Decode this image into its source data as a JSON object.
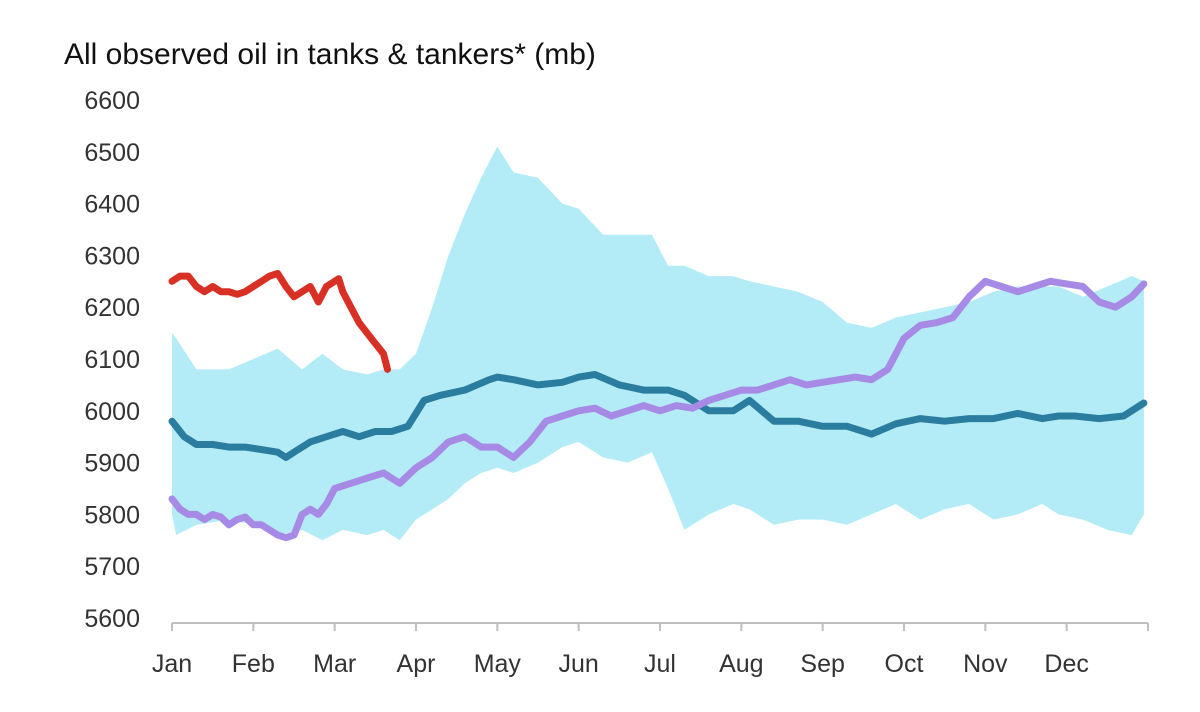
{
  "chart_data": {
    "type": "line",
    "title": "All observed oil in tanks & tankers* (mb)",
    "xlabel": "",
    "ylabel": "",
    "x_ticks": [
      "Jan",
      "Feb",
      "Mar",
      "Apr",
      "May",
      "Jun",
      "Jul",
      "Aug",
      "Sep",
      "Oct",
      "Nov",
      "Dec"
    ],
    "xlim": [
      0,
      12
    ],
    "ylim": [
      5600,
      6600
    ],
    "y_ticks": [
      5600,
      5700,
      5800,
      5900,
      6000,
      6100,
      6200,
      6300,
      6400,
      6500,
      6600
    ],
    "grid": false,
    "legend": "none",
    "band": {
      "color": "#b3ecf6",
      "x": [
        0,
        0.05,
        0.3,
        0.7,
        1.0,
        1.3,
        1.6,
        1.85,
        2.1,
        2.4,
        2.6,
        2.8,
        3.0,
        3.2,
        3.4,
        3.6,
        3.8,
        4.0,
        4.2,
        4.5,
        4.8,
        5.0,
        5.3,
        5.6,
        5.9,
        6.1,
        6.3,
        6.6,
        6.9,
        7.1,
        7.4,
        7.7,
        8.0,
        8.3,
        8.6,
        8.9,
        9.2,
        9.5,
        9.8,
        10.1,
        10.4,
        10.7,
        10.9,
        11.2,
        11.5,
        11.8,
        11.95
      ],
      "upper": [
        6150,
        6140,
        6080,
        6080,
        6100,
        6120,
        6080,
        6110,
        6080,
        6070,
        6080,
        6080,
        6110,
        6200,
        6300,
        6380,
        6450,
        6510,
        6460,
        6450,
        6400,
        6390,
        6340,
        6340,
        6340,
        6280,
        6280,
        6260,
        6260,
        6250,
        6240,
        6230,
        6210,
        6170,
        6160,
        6180,
        6190,
        6200,
        6210,
        6230,
        6240,
        6240,
        6240,
        6220,
        6240,
        6260,
        6250
      ],
      "lower": [
        5800,
        5760,
        5780,
        5790,
        5780,
        5760,
        5770,
        5750,
        5770,
        5760,
        5770,
        5750,
        5790,
        5810,
        5830,
        5860,
        5880,
        5890,
        5880,
        5900,
        5930,
        5940,
        5910,
        5900,
        5920,
        5850,
        5770,
        5800,
        5820,
        5810,
        5780,
        5790,
        5790,
        5780,
        5800,
        5820,
        5790,
        5810,
        5820,
        5790,
        5800,
        5820,
        5800,
        5790,
        5770,
        5760,
        5800
      ]
    },
    "series": [
      {
        "color": "#d93025",
        "x": [
          0,
          0.1,
          0.2,
          0.3,
          0.4,
          0.5,
          0.6,
          0.7,
          0.8,
          0.9,
          1.0,
          1.1,
          1.2,
          1.3,
          1.4,
          1.5,
          1.6,
          1.7,
          1.8,
          1.9,
          2.0,
          2.05,
          2.1,
          2.2,
          2.3,
          2.4,
          2.5,
          2.6,
          2.65
        ],
        "values": [
          6250,
          6260,
          6260,
          6240,
          6230,
          6240,
          6230,
          6230,
          6225,
          6230,
          6240,
          6250,
          6260,
          6265,
          6240,
          6220,
          6230,
          6240,
          6210,
          6240,
          6250,
          6255,
          6230,
          6200,
          6170,
          6150,
          6130,
          6110,
          6080
        ]
      },
      {
        "color": "#2a7d9f",
        "x": [
          0,
          0.15,
          0.3,
          0.5,
          0.7,
          0.9,
          1.1,
          1.3,
          1.4,
          1.5,
          1.7,
          1.9,
          2.1,
          2.3,
          2.5,
          2.7,
          2.9,
          3.1,
          3.3,
          3.6,
          3.9,
          4.0,
          4.2,
          4.5,
          4.8,
          5.0,
          5.2,
          5.5,
          5.8,
          6.1,
          6.3,
          6.6,
          6.9,
          7.1,
          7.4,
          7.7,
          8.0,
          8.3,
          8.6,
          8.9,
          9.2,
          9.5,
          9.8,
          10.1,
          10.4,
          10.7,
          10.9,
          11.1,
          11.4,
          11.7,
          11.95
        ],
        "values": [
          5980,
          5950,
          5935,
          5935,
          5930,
          5930,
          5925,
          5920,
          5910,
          5920,
          5940,
          5950,
          5960,
          5950,
          5960,
          5960,
          5970,
          6020,
          6030,
          6040,
          6060,
          6065,
          6060,
          6050,
          6055,
          6065,
          6070,
          6050,
          6040,
          6040,
          6030,
          6000,
          6000,
          6020,
          5980,
          5980,
          5970,
          5970,
          5955,
          5975,
          5985,
          5980,
          5985,
          5985,
          5995,
          5985,
          5990,
          5990,
          5985,
          5990,
          6015
        ]
      },
      {
        "color": "#a68ae6",
        "x": [
          0,
          0.1,
          0.2,
          0.3,
          0.4,
          0.5,
          0.6,
          0.7,
          0.8,
          0.9,
          1.0,
          1.1,
          1.2,
          1.3,
          1.4,
          1.5,
          1.6,
          1.7,
          1.8,
          1.9,
          2.0,
          2.2,
          2.4,
          2.6,
          2.8,
          3.0,
          3.2,
          3.4,
          3.6,
          3.8,
          4.0,
          4.2,
          4.4,
          4.6,
          4.8,
          5.0,
          5.2,
          5.4,
          5.6,
          5.8,
          6.0,
          6.2,
          6.4,
          6.6,
          6.8,
          7.0,
          7.2,
          7.4,
          7.6,
          7.8,
          8.0,
          8.2,
          8.4,
          8.6,
          8.8,
          9.0,
          9.2,
          9.4,
          9.6,
          9.8,
          10.0,
          10.2,
          10.4,
          10.6,
          10.8,
          11.0,
          11.2,
          11.4,
          11.6,
          11.8,
          11.95
        ],
        "values": [
          5830,
          5810,
          5800,
          5800,
          5790,
          5800,
          5795,
          5780,
          5790,
          5795,
          5780,
          5780,
          5770,
          5760,
          5755,
          5760,
          5800,
          5810,
          5800,
          5820,
          5850,
          5860,
          5870,
          5880,
          5860,
          5890,
          5910,
          5940,
          5950,
          5930,
          5930,
          5910,
          5940,
          5980,
          5990,
          6000,
          6005,
          5990,
          6000,
          6010,
          6000,
          6010,
          6005,
          6020,
          6030,
          6040,
          6040,
          6050,
          6060,
          6050,
          6055,
          6060,
          6065,
          6060,
          6080,
          6140,
          6165,
          6170,
          6180,
          6220,
          6250,
          6240,
          6230,
          6240,
          6250,
          6245,
          6240,
          6210,
          6200,
          6220,
          6245
        ]
      }
    ]
  }
}
